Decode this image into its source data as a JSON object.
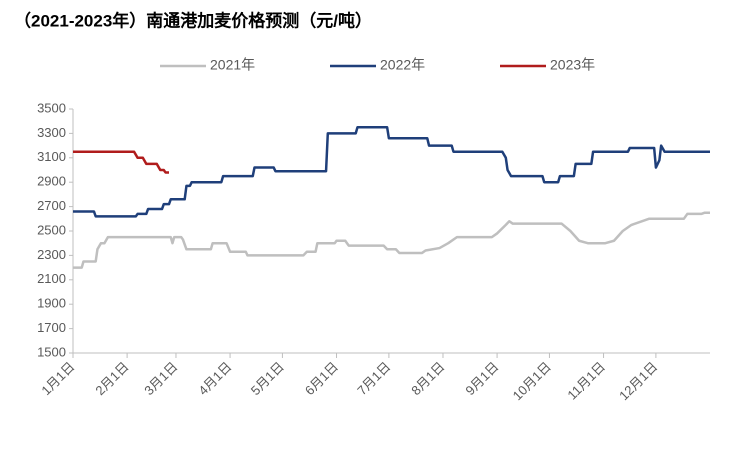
{
  "chart_data": {
    "type": "line",
    "title": "（2021-2023年）南通港加麦价格预测（元/吨）",
    "xlim": [
      0,
      365
    ],
    "xticks": [
      {
        "value": 0,
        "label": "1月1日"
      },
      {
        "value": 31,
        "label": "2月1日"
      },
      {
        "value": 59,
        "label": "3月1日"
      },
      {
        "value": 90,
        "label": "4月1日"
      },
      {
        "value": 120,
        "label": "5月1日"
      },
      {
        "value": 151,
        "label": "6月1日"
      },
      {
        "value": 181,
        "label": "7月1日"
      },
      {
        "value": 212,
        "label": "8月1日"
      },
      {
        "value": 243,
        "label": "9月1日"
      },
      {
        "value": 273,
        "label": "10月1日"
      },
      {
        "value": 304,
        "label": "11月1日"
      },
      {
        "value": 334,
        "label": "12月1日"
      }
    ],
    "ylim": [
      1500,
      3500
    ],
    "yticks": [
      1500,
      1700,
      1900,
      2100,
      2300,
      2500,
      2700,
      2900,
      3100,
      3300,
      3500
    ],
    "grid": false,
    "legend": "top",
    "series": [
      {
        "name": "2021年",
        "color": "#bfbfbf",
        "x": [
          0,
          5,
          6,
          13,
          14,
          16,
          18,
          20,
          56,
          57,
          58,
          62,
          63,
          65,
          79,
          80,
          88,
          90,
          99,
          100,
          132,
          134,
          139,
          140,
          150,
          151,
          156,
          158,
          178,
          180,
          185,
          187,
          200,
          202,
          210,
          215,
          220,
          240,
          243,
          248,
          250,
          252,
          280,
          285,
          290,
          295,
          305,
          310,
          315,
          320,
          330,
          350,
          352,
          360,
          362,
          365
        ],
        "values": [
          2200,
          2200,
          2250,
          2250,
          2350,
          2400,
          2400,
          2450,
          2450,
          2400,
          2450,
          2450,
          2430,
          2350,
          2350,
          2400,
          2400,
          2330,
          2330,
          2300,
          2300,
          2330,
          2330,
          2400,
          2400,
          2420,
          2420,
          2380,
          2380,
          2350,
          2350,
          2320,
          2320,
          2340,
          2360,
          2400,
          2450,
          2450,
          2480,
          2550,
          2580,
          2560,
          2560,
          2500,
          2420,
          2400,
          2400,
          2420,
          2500,
          2550,
          2600,
          2600,
          2640,
          2640,
          2650,
          2650
        ]
      },
      {
        "name": "2022年",
        "color": "#1f3f7a",
        "x": [
          0,
          12,
          13,
          36,
          37,
          42,
          43,
          51,
          52,
          55,
          56,
          64,
          65,
          67,
          68,
          85,
          86,
          103,
          104,
          115,
          116,
          145,
          146,
          162,
          163,
          180,
          181,
          203,
          204,
          217,
          218,
          246,
          248,
          249,
          251,
          269,
          270,
          278,
          279,
          287,
          288,
          297,
          298,
          318,
          319,
          333,
          334,
          336,
          337,
          339,
          365
        ],
        "values": [
          2660,
          2660,
          2620,
          2620,
          2640,
          2640,
          2680,
          2680,
          2720,
          2720,
          2760,
          2760,
          2870,
          2870,
          2900,
          2900,
          2950,
          2950,
          3020,
          3020,
          2990,
          2990,
          3300,
          3300,
          3350,
          3350,
          3260,
          3260,
          3200,
          3200,
          3150,
          3150,
          3100,
          3000,
          2950,
          2950,
          2900,
          2900,
          2950,
          2950,
          3050,
          3050,
          3150,
          3150,
          3180,
          3180,
          3020,
          3080,
          3200,
          3150,
          3150
        ]
      },
      {
        "name": "2023年",
        "color": "#b01c1c",
        "x": [
          0,
          35,
          37,
          40,
          42,
          48,
          50,
          52,
          53,
          55
        ],
        "values": [
          3150,
          3150,
          3100,
          3100,
          3050,
          3050,
          3000,
          3000,
          2980,
          2980
        ]
      }
    ]
  }
}
